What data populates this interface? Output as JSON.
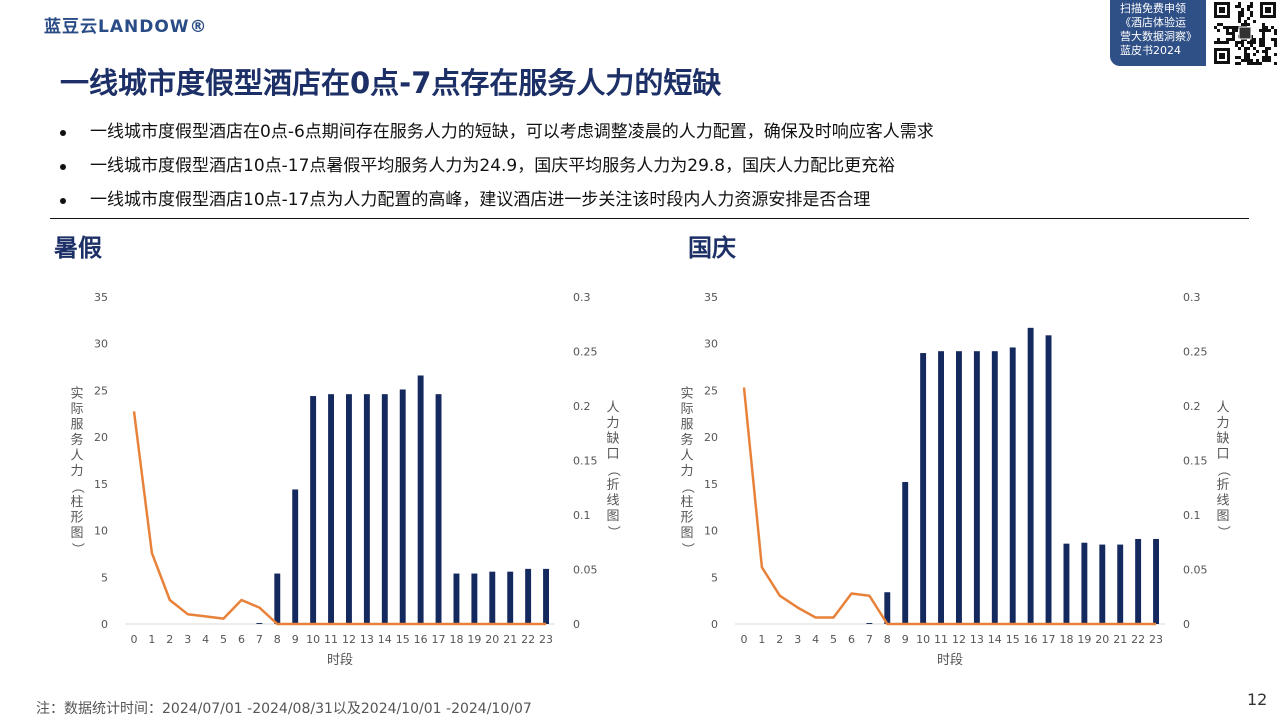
{
  "header": {
    "logo": "蓝豆云LANDOW®",
    "promo_lines": [
      "扫描免费申领",
      "《酒店体验运",
      "营大数据洞察》",
      "蓝皮书2024"
    ],
    "qr_icon": "qr-code-icon"
  },
  "title": "一线城市度假型酒店在0点-7点存在服务人力的短缺",
  "bullets": [
    "一线城市度假型酒店在0点-6点期间存在服务人力的短缺，可以考虑调整凌晨的人力配置，确保及时响应客人需求",
    "一线城市度假型酒店10点-17点暑假平均服务人力为24.9，国庆平均服务人力为29.8，国庆人力配比更充裕",
    "一线城市度假型酒店10点-17点为人力配置的高峰，建议酒店进一步关注该时段内人力资源安排是否合理"
  ],
  "sections": [
    "暑假",
    "国庆"
  ],
  "chart_data": [
    {
      "type": "bar+line",
      "title": "暑假",
      "xlabel": "时段",
      "ylabel_left": "实际服务人力（柱形图）",
      "ylabel_right": "人力缺口（折线图）",
      "categories": [
        "0",
        "1",
        "2",
        "3",
        "4",
        "5",
        "6",
        "7",
        "8",
        "9",
        "10",
        "11",
        "12",
        "13",
        "14",
        "15",
        "16",
        "17",
        "18",
        "19",
        "20",
        "21",
        "22",
        "23"
      ],
      "ylim_left": [
        0,
        35
      ],
      "yticks_left": [
        "0",
        "5",
        "10",
        "15",
        "20",
        "25",
        "30",
        "35"
      ],
      "ylim_right": [
        0,
        0.3
      ],
      "yticks_right": [
        "0",
        "0.05",
        "0.1",
        "0.15",
        "0.2",
        "0.25",
        "0.3"
      ],
      "bar_color": "#14295e",
      "line_color": "#e8823a",
      "bars": [
        0,
        0,
        0,
        0,
        0,
        0,
        0,
        0.1,
        5.4,
        14.4,
        24.4,
        24.6,
        24.6,
        24.6,
        24.6,
        25.1,
        26.6,
        24.6,
        5.4,
        5.4,
        5.6,
        5.6,
        5.9,
        5.9
      ],
      "line": [
        0.195,
        0.065,
        0.022,
        0.009,
        0.007,
        0.005,
        0.022,
        0.015,
        0,
        0,
        0,
        0,
        0,
        0,
        0,
        0,
        0,
        0,
        0,
        0,
        0,
        0,
        0,
        0
      ]
    },
    {
      "type": "bar+line",
      "title": "国庆",
      "xlabel": "时段",
      "ylabel_left": "实际服务人力（柱形图）",
      "ylabel_right": "人力缺口（折线图）",
      "categories": [
        "0",
        "1",
        "2",
        "3",
        "4",
        "5",
        "6",
        "7",
        "8",
        "9",
        "10",
        "11",
        "12",
        "13",
        "14",
        "15",
        "16",
        "17",
        "18",
        "19",
        "20",
        "21",
        "22",
        "23"
      ],
      "ylim_left": [
        0,
        35
      ],
      "yticks_left": [
        "0",
        "5",
        "10",
        "15",
        "20",
        "25",
        "30",
        "35"
      ],
      "ylim_right": [
        0,
        0.3
      ],
      "yticks_right": [
        "0",
        "0.05",
        "0.1",
        "0.15",
        "0.2",
        "0.25",
        "0.3"
      ],
      "bar_color": "#14295e",
      "line_color": "#e8823a",
      "bars": [
        0,
        0,
        0,
        0,
        0,
        0,
        0,
        0.1,
        3.4,
        15.2,
        29.0,
        29.2,
        29.2,
        29.2,
        29.2,
        29.6,
        31.7,
        30.9,
        8.6,
        8.7,
        8.5,
        8.5,
        9.1,
        9.1
      ],
      "line": [
        0.217,
        0.052,
        0.026,
        0.015,
        0.006,
        0.006,
        0.028,
        0.026,
        0,
        0,
        0,
        0,
        0,
        0,
        0,
        0,
        0,
        0,
        0,
        0,
        0,
        0,
        0,
        0
      ]
    }
  ],
  "note": "注：数据统计时间：2024/07/01 -2024/08/31以及2024/10/01 -2024/10/07",
  "page_number": "12"
}
